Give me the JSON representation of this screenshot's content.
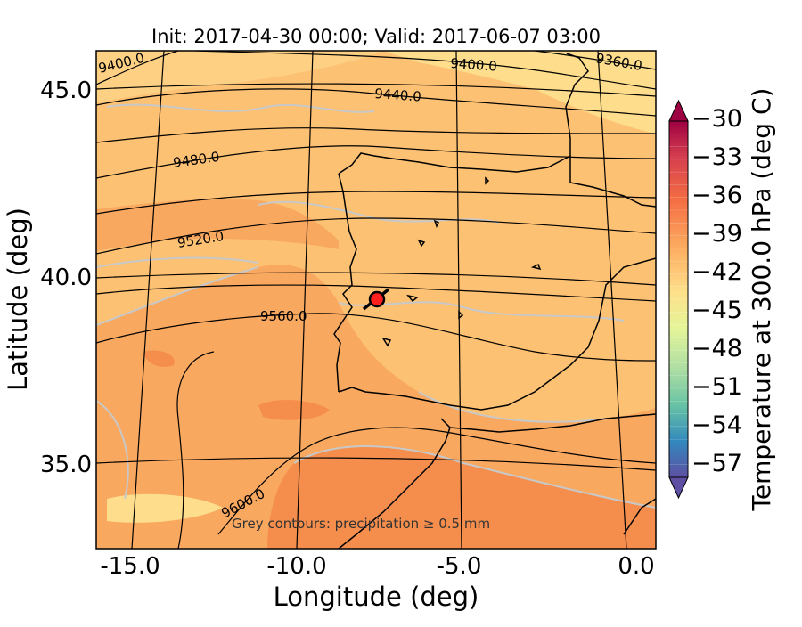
{
  "chart_data": {
    "type": "map",
    "title": "Init: 2017-04-30 00:00; Valid: 2017-06-07 03:00",
    "xlabel": "Longitude (deg)",
    "ylabel": "Latitude (deg)",
    "xticks": [
      "-15.0",
      "-10.0",
      "-5.0",
      "0.0"
    ],
    "yticks": [
      "45.0",
      "40.0",
      "35.0"
    ],
    "xlim": [
      -16,
      0
    ],
    "ylim": [
      32.8,
      46
    ],
    "colorbar": {
      "label": "Temperature at 300.0 hPa (deg C)",
      "ticks": [
        "−30",
        "−33",
        "−36",
        "−39",
        "−42",
        "−45",
        "−48",
        "−51",
        "−54",
        "−57"
      ],
      "range": [
        -58,
        -30
      ],
      "extend": "both",
      "colormap": "Spectral"
    },
    "contours": {
      "quantity": "geopotential height",
      "levels": [
        "9360.0",
        "9400.0",
        "9440.0",
        "9480.0",
        "9520.0",
        "9560.0",
        "9600.0"
      ]
    },
    "annotation": "Grey contours: precipitation ≥ 0.5 mm",
    "marker": {
      "lon": -7.6,
      "lat": 39.3,
      "color": "#ff2020"
    },
    "colors": {
      "warm_orange": "#f9a860",
      "light_orange": "#fdc173",
      "pale_yellow": "#fedd8c",
      "deep_orange": "#f58e4c"
    }
  }
}
